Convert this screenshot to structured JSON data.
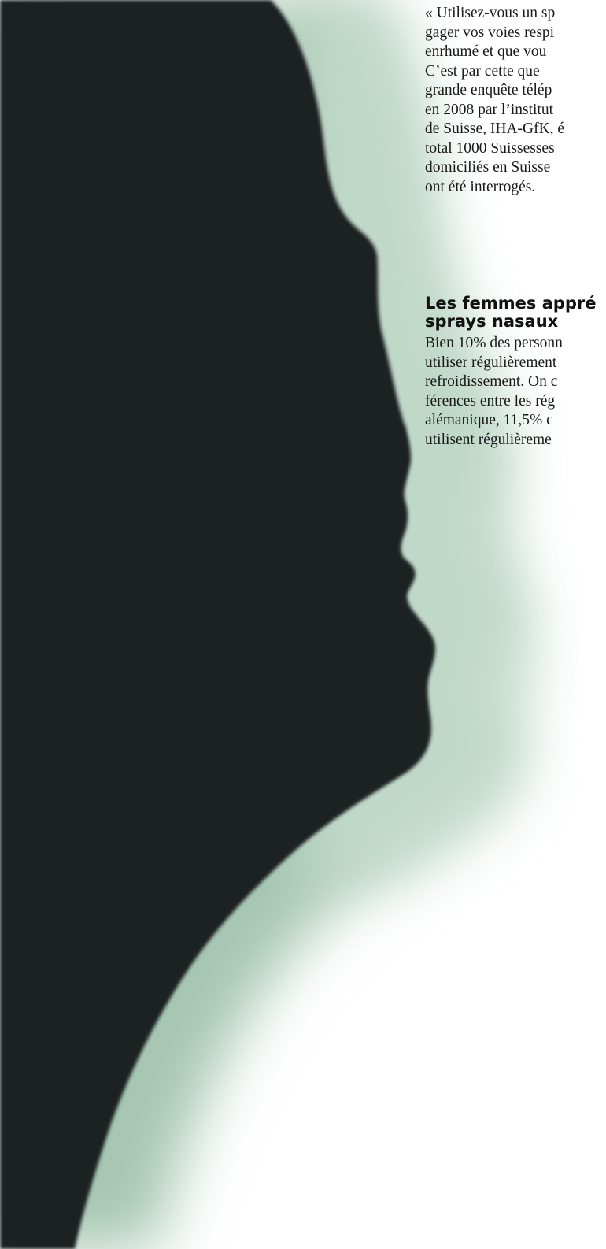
{
  "article": {
    "intro_lines": [
      "« Utilisez-vous un sp",
      "gager vos voies respi",
      "enrhumé et que vou",
      "C’est par cette que",
      "grande enquête télép",
      "en 2008 par l’institut",
      "de Suisse, IHA-GfK, é",
      "total 1000 Suissesses",
      "domiciliés en Suisse",
      "ont été interrogés."
    ],
    "heading_lines": [
      "Les femmes appré",
      "sprays nasaux"
    ],
    "body_lines": [
      "Bien 10% des personn",
      "utiliser régulièrement",
      "refroidissement. On c",
      "férences entre les rég",
      "alémanique, 11,5% c",
      "utilisent régulièreme"
    ]
  },
  "colors": {
    "silhouette": "#1c2020",
    "glow": "#9fc2ad",
    "background": "#ffffff"
  }
}
